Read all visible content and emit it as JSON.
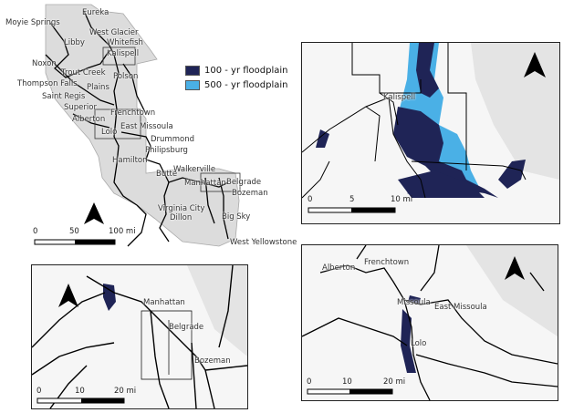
{
  "legend": {
    "items": [
      {
        "label": "100 - yr floodplain",
        "color": "#1f2456"
      },
      {
        "label": "500 - yr floodplain",
        "color": "#4ab0e6"
      }
    ]
  },
  "overview": {
    "towns": [
      "Eureka",
      "Moyie Springs",
      "West Glacier",
      "Libby",
      "Whitefish",
      "Kalispell",
      "Noxon",
      "Trout Creek",
      "Polson",
      "Thompson Falls",
      "Plains",
      "Saint Regis",
      "Superior",
      "Frenchtown",
      "Alberton",
      "East Missoula",
      "Lolo",
      "Drummond",
      "Philipsburg",
      "Hamilton",
      "Walkerville",
      "Butte",
      "Manhattan",
      "Belgrade",
      "Bozeman",
      "Virginia City",
      "Dillon",
      "Big Sky",
      "West Yellowstone"
    ],
    "scale": {
      "labels": [
        "0",
        "50",
        "100 mi"
      ]
    }
  },
  "kalispell_panel": {
    "towns": [
      "Kalispell"
    ],
    "scale": {
      "labels": [
        "0",
        "5",
        "10 mi"
      ]
    }
  },
  "bozeman_panel": {
    "towns": [
      "Manhattan",
      "Belgrade",
      "Bozeman"
    ],
    "scale": {
      "labels": [
        "0",
        "10",
        "20 mi"
      ]
    }
  },
  "missoula_panel": {
    "towns": [
      "Alberton",
      "Frenchtown",
      "Missoula",
      "East Missoula",
      "Lolo"
    ],
    "scale": {
      "labels": [
        "0",
        "10",
        "20 mi"
      ]
    }
  },
  "colors": {
    "flood100": "#1f2456",
    "flood500": "#4ab0e6",
    "roads": "#000000",
    "terrain": "#e8e8e8"
  }
}
